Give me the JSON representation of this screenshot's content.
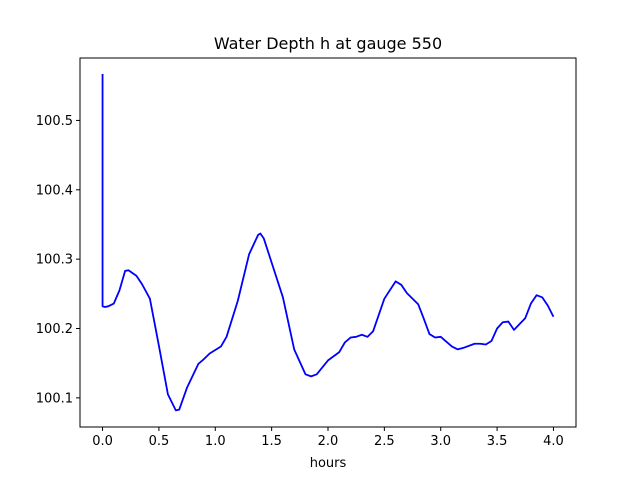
{
  "chart_data": {
    "type": "line",
    "title": "Water Depth h at gauge 550",
    "xlabel": "hours",
    "ylabel": "",
    "xlim": [
      -0.2,
      4.2
    ],
    "ylim": [
      100.058,
      100.59
    ],
    "xticks": [
      0.0,
      0.5,
      1.0,
      1.5,
      2.0,
      2.5,
      3.0,
      3.5,
      4.0
    ],
    "xtick_labels": [
      "0.0",
      "0.5",
      "1.0",
      "1.5",
      "2.0",
      "2.5",
      "3.0",
      "3.5",
      "4.0"
    ],
    "yticks": [
      100.1,
      100.2,
      100.3,
      100.4,
      100.5
    ],
    "ytick_labels": [
      "100.1",
      "100.2",
      "100.3",
      "100.4",
      "100.5"
    ],
    "grid": false,
    "series": [
      {
        "color": "#0000ff",
        "x": [
          0.0,
          0.0,
          0.02,
          0.05,
          0.1,
          0.15,
          0.2,
          0.23,
          0.3,
          0.35,
          0.42,
          0.5,
          0.58,
          0.65,
          0.68,
          0.75,
          0.85,
          0.9,
          0.95,
          1.0,
          1.05,
          1.1,
          1.2,
          1.3,
          1.38,
          1.4,
          1.43,
          1.5,
          1.6,
          1.7,
          1.8,
          1.85,
          1.9,
          2.0,
          2.05,
          2.1,
          2.15,
          2.2,
          2.25,
          2.3,
          2.35,
          2.4,
          2.5,
          2.6,
          2.65,
          2.7,
          2.8,
          2.85,
          2.9,
          2.95,
          3.0,
          3.1,
          3.15,
          3.2,
          3.3,
          3.35,
          3.4,
          3.45,
          3.5,
          3.55,
          3.6,
          3.65,
          3.75,
          3.8,
          3.85,
          3.9,
          3.95,
          4.0
        ],
        "y": [
          100.567,
          100.232,
          100.231,
          100.232,
          100.236,
          100.255,
          100.283,
          100.284,
          100.276,
          100.264,
          100.243,
          100.175,
          100.105,
          100.082,
          100.083,
          100.115,
          100.149,
          100.156,
          100.164,
          100.169,
          100.174,
          100.188,
          100.24,
          100.307,
          100.335,
          100.337,
          100.33,
          100.295,
          100.245,
          100.17,
          100.134,
          100.131,
          100.134,
          100.154,
          100.16,
          100.166,
          100.18,
          100.187,
          100.188,
          100.191,
          100.188,
          100.196,
          100.243,
          100.268,
          100.263,
          100.251,
          100.235,
          100.214,
          100.192,
          100.187,
          100.188,
          100.174,
          100.17,
          100.172,
          100.178,
          100.178,
          100.177,
          100.182,
          100.2,
          100.209,
          100.21,
          100.198,
          100.215,
          100.236,
          100.248,
          100.245,
          100.233,
          100.217
        ]
      }
    ]
  }
}
